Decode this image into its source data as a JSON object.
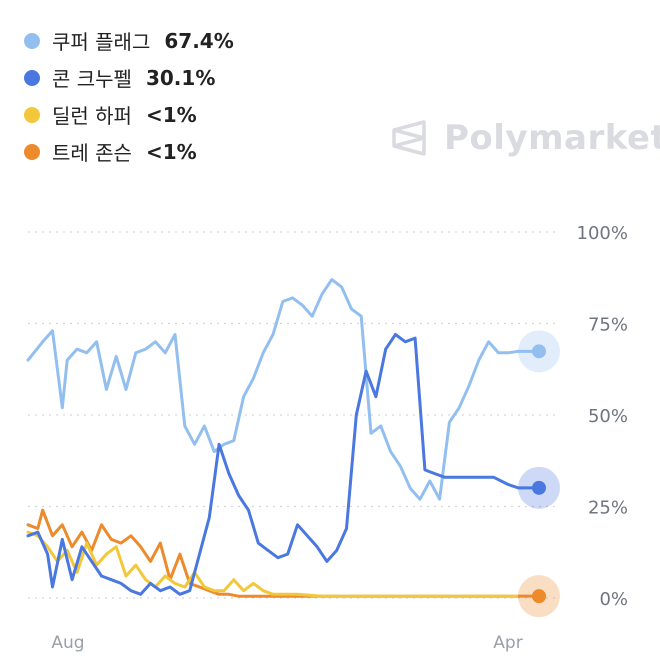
{
  "legend": [
    {
      "name": "쿠퍼 플래그",
      "value": "67.4%",
      "color": "#93bff0"
    },
    {
      "name": "콘 크누펠",
      "value": "30.1%",
      "color": "#4a78e0"
    },
    {
      "name": "딜런 하퍼",
      "value": "<1%",
      "color": "#f2c83a"
    },
    {
      "name": "트레 존슨",
      "value": "<1%",
      "color": "#ec8a2c"
    }
  ],
  "brand": {
    "name": "Polymarket",
    "icon": "polymarket-logo-icon"
  },
  "chart_data": {
    "type": "line",
    "ylim": [
      0,
      100
    ],
    "yticks": [
      "100%",
      "75%",
      "50%",
      "25%",
      "0%"
    ],
    "xticks": [
      "Aug",
      "Apr"
    ],
    "grid": true,
    "legend_position": "top-left",
    "x_range": [
      0,
      100
    ],
    "series": [
      {
        "name": "쿠퍼 플래그",
        "color": "#93bff0",
        "end_value": 67.4,
        "x": [
          0,
          3,
          5,
          7,
          8,
          10,
          12,
          14,
          16,
          18,
          20,
          22,
          24,
          26,
          28,
          30,
          32,
          34,
          36,
          38,
          40,
          42,
          44,
          46,
          48,
          50,
          52,
          54,
          56,
          58,
          60,
          62,
          64,
          66,
          68,
          70,
          72,
          74,
          76,
          78,
          80,
          82,
          84,
          86,
          88,
          90,
          92,
          94,
          96,
          98,
          100
        ],
        "values": [
          65,
          70,
          73,
          52,
          65,
          68,
          67,
          70,
          57,
          66,
          57,
          67,
          68,
          70,
          67,
          72,
          47,
          42,
          47,
          40,
          42,
          43,
          55,
          60,
          67,
          72,
          81,
          82,
          80,
          77,
          83,
          87,
          85,
          79,
          77,
          45,
          47,
          40,
          36,
          30,
          27,
          32,
          27,
          48,
          52,
          58,
          65,
          70,
          67,
          67,
          67.4
        ]
      },
      {
        "name": "콘 크누펠",
        "color": "#4a78e0",
        "end_value": 30.1,
        "x": [
          0,
          2,
          4,
          5,
          7,
          9,
          11,
          13,
          15,
          17,
          19,
          21,
          23,
          25,
          27,
          29,
          31,
          33,
          35,
          37,
          39,
          41,
          43,
          45,
          47,
          49,
          51,
          53,
          55,
          57,
          59,
          61,
          63,
          65,
          67,
          69,
          71,
          73,
          75,
          77,
          79,
          81,
          83,
          85,
          87,
          88,
          90,
          92,
          95,
          98,
          100
        ],
        "values": [
          17,
          18,
          12,
          3,
          16,
          5,
          14,
          10,
          6,
          5,
          4,
          2,
          1,
          4,
          2,
          3,
          1,
          2,
          12,
          22,
          42,
          34,
          28,
          24,
          15,
          13,
          11,
          12,
          20,
          17,
          14,
          10,
          13,
          19,
          50,
          62,
          55,
          68,
          72,
          70,
          71,
          35,
          34,
          33,
          33,
          33,
          33,
          33,
          33,
          31,
          30.1
        ]
      },
      {
        "name": "딜런 하퍼",
        "color": "#f2c83a",
        "end_value": 0.5,
        "x": [
          0,
          2,
          4,
          6,
          8,
          10,
          12,
          14,
          16,
          18,
          20,
          22,
          24,
          26,
          28,
          30,
          32,
          34,
          36,
          38,
          40,
          42,
          44,
          46,
          48,
          50,
          55,
          60,
          65,
          70,
          75,
          80,
          85,
          90,
          95,
          100
        ],
        "values": [
          18,
          17,
          14,
          10,
          13,
          7,
          15,
          9,
          12,
          14,
          6,
          9,
          5,
          3,
          6,
          4,
          3,
          7,
          3,
          2,
          2,
          5,
          2,
          4,
          2,
          1,
          1,
          0.5,
          0.5,
          0.5,
          0.5,
          0.5,
          0.5,
          0.5,
          0.5,
          0.5
        ]
      },
      {
        "name": "트레 존슨",
        "color": "#ec8a2c",
        "end_value": 0.5,
        "x": [
          0,
          2,
          3,
          5,
          7,
          9,
          11,
          13,
          15,
          17,
          19,
          21,
          23,
          25,
          27,
          29,
          31,
          33,
          35,
          37,
          39,
          41,
          43,
          45,
          47,
          50,
          55,
          60,
          65,
          70,
          75,
          80,
          85,
          90,
          95,
          100
        ],
        "values": [
          20,
          19,
          24,
          17,
          20,
          14,
          18,
          13,
          20,
          16,
          15,
          17,
          14,
          10,
          15,
          5,
          12,
          4,
          3,
          2,
          1,
          1,
          0.5,
          0.5,
          0.5,
          0.5,
          0.5,
          0.5,
          0.5,
          0.5,
          0.5,
          0.5,
          0.5,
          0.5,
          0.5,
          0.5
        ]
      }
    ]
  }
}
